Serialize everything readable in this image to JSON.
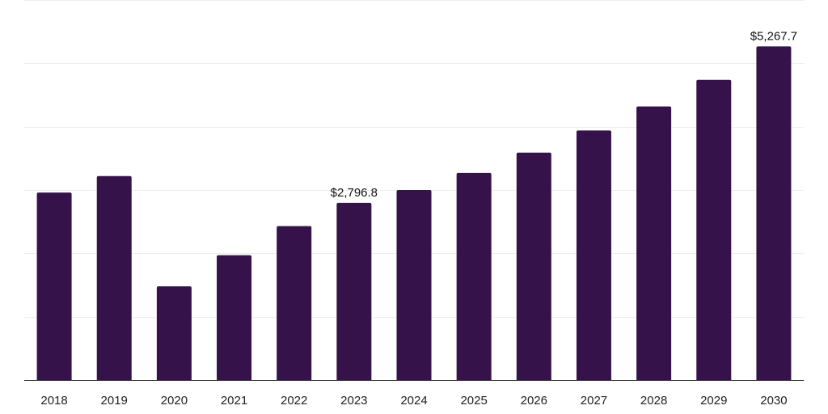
{
  "chart_data": {
    "type": "bar",
    "title": "",
    "xlabel": "",
    "ylabel": "",
    "categories": [
      "2018",
      "2019",
      "2020",
      "2021",
      "2022",
      "2023",
      "2024",
      "2025",
      "2026",
      "2027",
      "2028",
      "2029",
      "2030"
    ],
    "values": [
      2960,
      3220,
      1480,
      1970,
      2430,
      2796.8,
      3000,
      3270,
      3590,
      3940,
      4320,
      4740,
      5267.7
    ],
    "data_labels": [
      {
        "category": "2023",
        "text": "$2,796.8"
      },
      {
        "category": "2030",
        "text": "$5,267.7"
      }
    ],
    "ylim": [
      0,
      6000
    ],
    "gridlines": [
      0,
      1000,
      2000,
      3000,
      4000,
      5000,
      6000
    ],
    "grid": true,
    "legend": "none",
    "bar_color": "#36124a",
    "axis_color": "#333333",
    "grid_color": "#eeeeee"
  }
}
